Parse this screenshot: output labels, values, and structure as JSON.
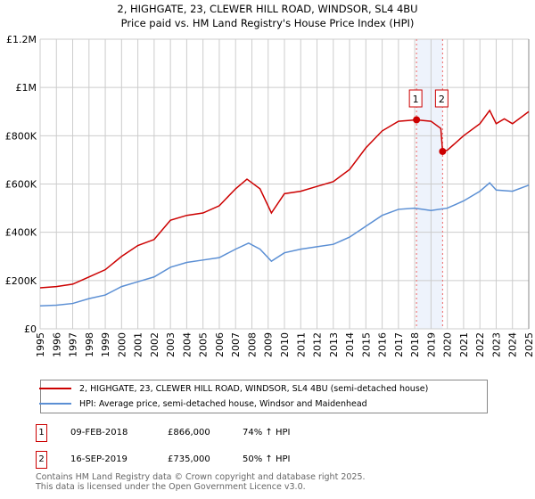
{
  "chart_data": {
    "type": "line",
    "title": "2, HIGHGATE, 23, CLEWER HILL ROAD, WINDSOR, SL4 4BU",
    "subtitle": "Price paid vs. HM Land Registry's House Price Index (HPI)",
    "xlim": [
      1995,
      2025
    ],
    "ylim": [
      0,
      1200000
    ],
    "x_ticks": [
      "1995",
      "1996",
      "1997",
      "1998",
      "1999",
      "2000",
      "2001",
      "2002",
      "2003",
      "2004",
      "2005",
      "2006",
      "2007",
      "2008",
      "2009",
      "2010",
      "2011",
      "2012",
      "2013",
      "2014",
      "2015",
      "2016",
      "2017",
      "2018",
      "2019",
      "2020",
      "2021",
      "2022",
      "2023",
      "2024",
      "2025"
    ],
    "y_ticks": [
      {
        "v": 0,
        "label": "£0"
      },
      {
        "v": 200000,
        "label": "£200K"
      },
      {
        "v": 400000,
        "label": "£400K"
      },
      {
        "v": 600000,
        "label": "£600K"
      },
      {
        "v": 800000,
        "label": "£800K"
      },
      {
        "v": 1000000,
        "label": "£1M"
      },
      {
        "v": 1200000,
        "label": "£1.2M"
      }
    ],
    "grid": true,
    "series": [
      {
        "name": "2, HIGHGATE, 23, CLEWER HILL ROAD, WINDSOR, SL4 4BU (semi-detached house)",
        "color": "#cc0000",
        "x": [
          1995,
          1996,
          1997,
          1998,
          1999,
          2000,
          2001,
          2002,
          2003,
          2004,
          2005,
          2006,
          2007,
          2007.7,
          2008.5,
          2009.2,
          2010,
          2011,
          2012,
          2013,
          2014,
          2015,
          2016,
          2017,
          2018.1,
          2019,
          2019.6,
          2019.71,
          2020,
          2021,
          2022,
          2022.6,
          2023,
          2023.5,
          2024,
          2025
        ],
        "y": [
          170000,
          175000,
          185000,
          215000,
          245000,
          300000,
          345000,
          370000,
          450000,
          470000,
          480000,
          510000,
          580000,
          620000,
          580000,
          480000,
          560000,
          570000,
          590000,
          610000,
          660000,
          750000,
          820000,
          860000,
          866000,
          860000,
          830000,
          735000,
          740000,
          800000,
          850000,
          905000,
          850000,
          870000,
          850000,
          900000
        ]
      },
      {
        "name": "HPI: Average price, semi-detached house, Windsor and Maidenhead",
        "color": "#5b8fd4",
        "x": [
          1995,
          1996,
          1997,
          1998,
          1999,
          2000,
          2001,
          2002,
          2003,
          2004,
          2005,
          2006,
          2007,
          2007.8,
          2008.5,
          2009.2,
          2010,
          2011,
          2012,
          2013,
          2014,
          2015,
          2016,
          2017,
          2018,
          2019,
          2020,
          2021,
          2022,
          2022.6,
          2023,
          2024,
          2025
        ],
        "y": [
          95000,
          98000,
          105000,
          125000,
          140000,
          175000,
          195000,
          215000,
          255000,
          275000,
          285000,
          295000,
          330000,
          355000,
          330000,
          280000,
          315000,
          330000,
          340000,
          350000,
          380000,
          425000,
          470000,
          495000,
          500000,
          490000,
          500000,
          530000,
          570000,
          605000,
          575000,
          570000,
          595000
        ]
      }
    ],
    "transactions": [
      {
        "id": "1",
        "x": 2018.11,
        "value": 866000,
        "date": "09-FEB-2018",
        "price": "£866,000",
        "hpi": "74% ↑ HPI"
      },
      {
        "id": "2",
        "x": 2019.71,
        "value": 735000,
        "date": "16-SEP-2019",
        "price": "£735,000",
        "hpi": "50% ↑ HPI"
      }
    ],
    "legend_position": "bottom"
  },
  "footer": [
    "Contains HM Land Registry data © Crown copyright and database right 2025.",
    "This data is licensed under the Open Government Licence v3.0."
  ]
}
